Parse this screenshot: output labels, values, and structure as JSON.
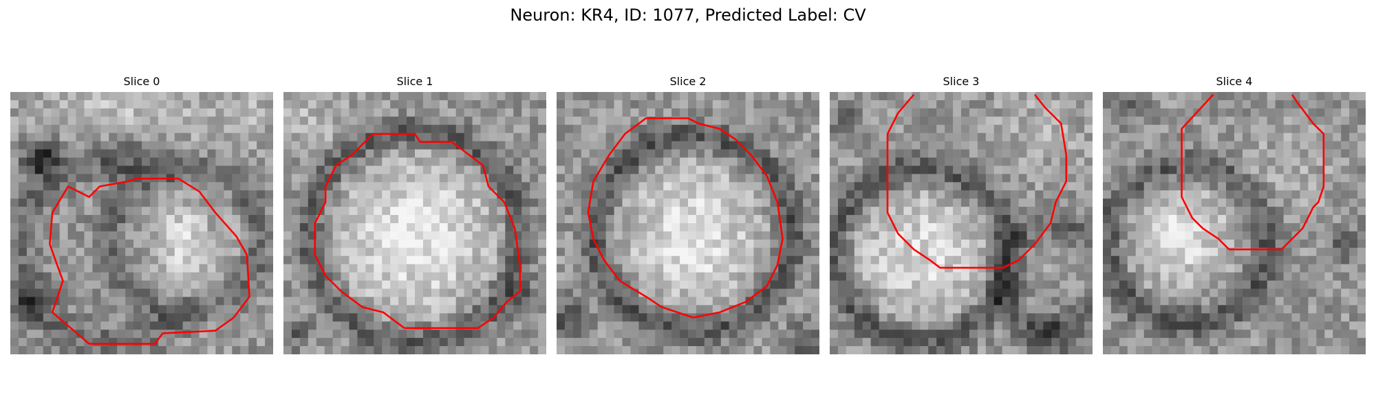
{
  "figure": {
    "title": "Neuron: KR4, ID: 1077, Predicted Label: CV"
  },
  "colors": {
    "contour": "#ff0000",
    "background": "#ffffff"
  },
  "slices": [
    {
      "title": "Slice 0"
    },
    {
      "title": "Slice 1"
    },
    {
      "title": "Slice 2"
    },
    {
      "title": "Slice 3"
    },
    {
      "title": "Slice 4"
    }
  ]
}
